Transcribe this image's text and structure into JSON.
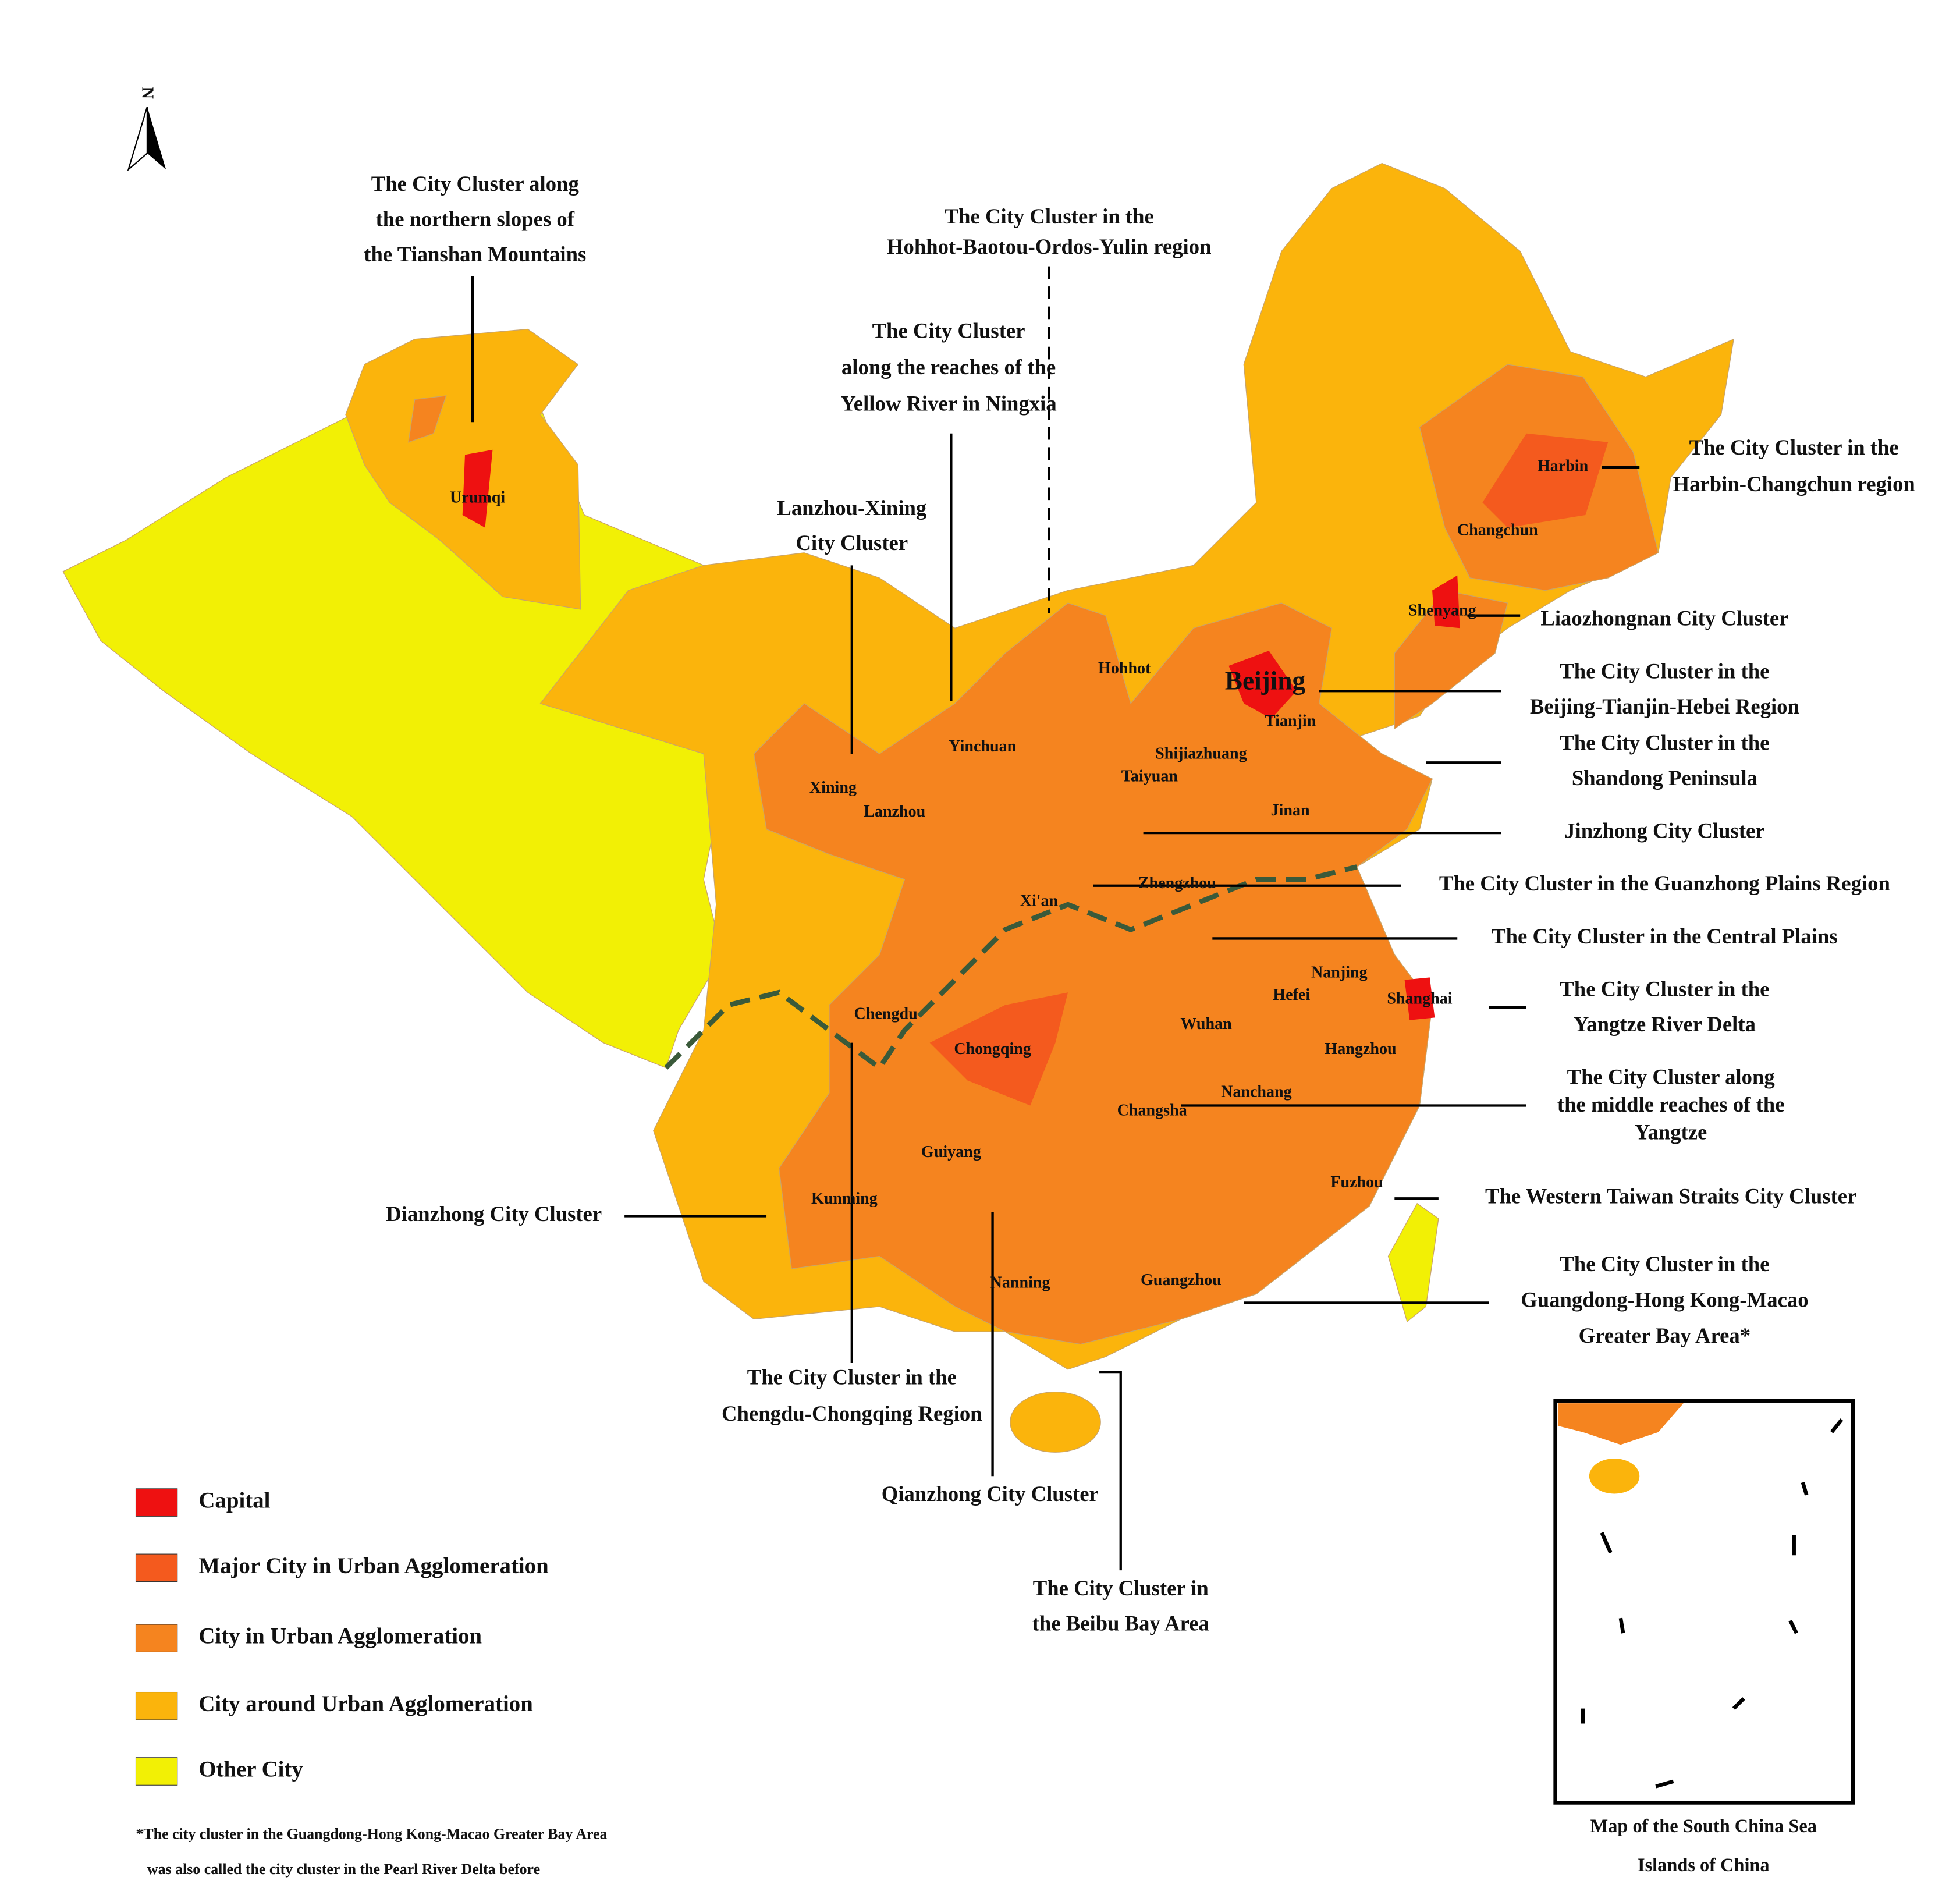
{
  "north": "N",
  "clusters": [
    {
      "lines": [
        "The City Cluster along",
        "the northern slopes of",
        "the Tianshan Mountains"
      ]
    },
    {
      "lines": [
        "The City Cluster in the",
        "Hohhot-Baotou-Ordos-Yulin region"
      ]
    },
    {
      "lines": [
        "The City Cluster",
        "along the reaches of the",
        "Yellow River in Ningxia"
      ]
    },
    {
      "lines": [
        "Lanzhou-Xining",
        "City Cluster"
      ]
    },
    {
      "lines": [
        "The City Cluster in the",
        "Harbin-Changchun region"
      ]
    },
    {
      "lines": [
        "Liaozhongnan City Cluster"
      ]
    },
    {
      "lines": [
        "The City Cluster in the",
        "Beijing-Tianjin-Hebei Region"
      ]
    },
    {
      "lines": [
        "The City Cluster in the",
        "Shandong Peninsula"
      ]
    },
    {
      "lines": [
        "Jinzhong City Cluster"
      ]
    },
    {
      "lines": [
        "The City Cluster in the Guanzhong Plains Region"
      ]
    },
    {
      "lines": [
        "The City Cluster in the Central Plains"
      ]
    },
    {
      "lines": [
        "The City Cluster in the",
        "Yangtze River Delta"
      ]
    },
    {
      "lines": [
        "The City Cluster along",
        "the middle reaches of the",
        "Yangtze"
      ]
    },
    {
      "lines": [
        "The Western Taiwan Straits City Cluster"
      ]
    },
    {
      "lines": [
        "The City Cluster in the",
        "Guangdong-Hong Kong-Macao",
        "Greater Bay Area*"
      ]
    },
    {
      "lines": [
        "Dianzhong City Cluster"
      ]
    },
    {
      "lines": [
        "The City Cluster in the",
        "Chengdu-Chongqing Region"
      ]
    },
    {
      "lines": [
        "Qianzhong City Cluster"
      ]
    },
    {
      "lines": [
        "The City Cluster in",
        "the Beibu Bay Area"
      ]
    }
  ],
  "cities": [
    "Urumqi",
    "Harbin",
    "Changchun",
    "Shenyang",
    "Hohhot",
    "Beijing",
    "Tianjin",
    "Yinchuan",
    "Shijiazhuang",
    "Taiyuan",
    "Xining",
    "Lanzhou",
    "Jinan",
    "Xi'an",
    "Zhengzhou",
    "Nanjing",
    "Hefei",
    "Shanghai",
    "Chengdu",
    "Chongqing",
    "Wuhan",
    "Hangzhou",
    "Nanchang",
    "Changsha",
    "Guiyang",
    "Fuzhou",
    "Kunming",
    "Nanning",
    "Guangzhou"
  ],
  "legend": [
    {
      "label": "Capital",
      "color": "#ee1111"
    },
    {
      "label": "Major City in Urban Agglomeration",
      "color": "#f45a1e"
    },
    {
      "label": "City in Urban Agglomeration",
      "color": "#f5841f"
    },
    {
      "label": "City around Urban Agglomeration",
      "color": "#fbb40c"
    },
    {
      "label": "Other City",
      "color": "#f2f005"
    }
  ],
  "footnote": [
    "*The city cluster in the Guangdong-Hong Kong-Macao Greater Bay Area",
    "was also called the city cluster in the Pearl River Delta before"
  ],
  "inset": {
    "caption": [
      "Map of the South China Sea",
      "Islands of China"
    ]
  }
}
